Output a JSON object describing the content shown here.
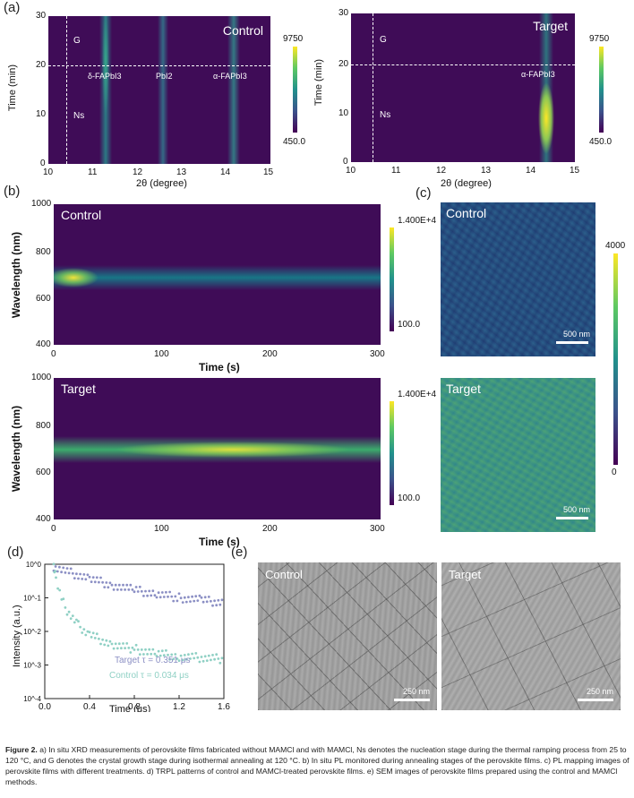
{
  "figure": {
    "caption_label": "Figure 2.",
    "caption_text": " a) In situ XRD measurements of perovskite films fabricated without MAMCl and with MAMCl, Ns denotes the nucleation stage during the thermal ramping process from 25 to 120 °C, and G denotes the crystal growth stage during isothermal annealing at 120 °C. b) In situ PL monitored during annealing stages of the perovskite films. c) PL mapping images of perovskite films with different treatments. d) TRPL patterns of control and MAMCl-treated perovskite films. e) SEM images of perovskite films prepared using the control and MAMCl methods."
  },
  "panel_a": {
    "label": "(a)",
    "left": {
      "title": "Control",
      "ylabel": "Time (min)",
      "xlabel": "2θ (degree)",
      "yticks": [
        "0",
        "10",
        "20",
        "30"
      ],
      "xticks": [
        "10",
        "11",
        "12",
        "13",
        "14",
        "15"
      ],
      "stage_top": "G",
      "stage_bottom": "Ns",
      "peaks": [
        "δ-FAPbI3",
        "PbI2",
        "α-FAPbI3"
      ],
      "cbar_max": "9750",
      "cbar_min": "450.0"
    },
    "right": {
      "title": "Target",
      "ylabel": "Time (min)",
      "xlabel": "2θ (degree)",
      "yticks": [
        "0",
        "10",
        "20",
        "30"
      ],
      "xticks": [
        "10",
        "11",
        "12",
        "13",
        "14",
        "15"
      ],
      "stage_top": "G",
      "stage_bottom": "Ns",
      "peaks": [
        "α-FAPbI3"
      ],
      "cbar_max": "9750",
      "cbar_min": "450.0"
    }
  },
  "panel_b": {
    "label": "(b)",
    "top": {
      "title": "Control",
      "ylabel": "Wavelength (nm)",
      "xlabel": "Time (s)",
      "yticks": [
        "400",
        "600",
        "800",
        "1000"
      ],
      "xticks": [
        "0",
        "100",
        "200",
        "300"
      ],
      "cbar_max": "1.400E+4",
      "cbar_min": "100.0"
    },
    "bottom": {
      "title": "Target",
      "ylabel": "Wavelength (nm)",
      "xlabel": "Time (s)",
      "yticks": [
        "400",
        "600",
        "800",
        "1000"
      ],
      "xticks": [
        "0",
        "100",
        "200",
        "300"
      ],
      "cbar_max": "1.400E+4",
      "cbar_min": "100.0"
    }
  },
  "panel_c": {
    "label": "(c)",
    "top_title": "Control",
    "bottom_title": "Target",
    "scale_bar": "500 nm",
    "cbar_max": "4000",
    "cbar_min": "0"
  },
  "panel_d": {
    "label": "(d)",
    "ylabel": "Intensity (a.u.)",
    "xlabel": "Time (μs)",
    "target_legend": "Target τ = 0.351  μs",
    "control_legend": "Control τ = 0.034  μs",
    "colors": {
      "target": "#8b8fc4",
      "control": "#8fd0c4"
    }
  },
  "panel_e": {
    "label": "(e)",
    "left_title": "Control",
    "right_title": "Target",
    "scale_bar": "250 nm"
  },
  "chart_data": {
    "type": "scatter",
    "x_range": [
      0,
      1.6
    ],
    "y_range": [
      0.0001,
      1
    ],
    "y_scale": "log",
    "xticks": [
      "0.0",
      "0.4",
      "0.8",
      "1.2",
      "1.6"
    ],
    "yticks": [
      "10^0",
      "10^-1",
      "10^-2",
      "10^-3",
      "10^-4"
    ],
    "xlabel": "Time (μs)",
    "ylabel": "Intensity (a.u.)",
    "series": [
      {
        "name": "Target τ = 0.351  μs",
        "tau": 0.351,
        "color": "#8b8fc4",
        "points": [
          [
            0.08,
            0.85
          ],
          [
            0.2,
            0.6
          ],
          [
            0.4,
            0.37
          ],
          [
            0.6,
            0.24
          ],
          [
            0.8,
            0.17
          ],
          [
            1.0,
            0.13
          ],
          [
            1.2,
            0.1
          ],
          [
            1.4,
            0.085
          ],
          [
            1.6,
            0.072
          ]
        ]
      },
      {
        "name": "Control τ = 0.034  μs",
        "tau": 0.034,
        "color": "#8fd0c4",
        "points": [
          [
            0.08,
            0.9
          ],
          [
            0.1,
            0.4
          ],
          [
            0.15,
            0.1
          ],
          [
            0.2,
            0.04
          ],
          [
            0.3,
            0.015
          ],
          [
            0.4,
            0.008
          ],
          [
            0.6,
            0.004
          ],
          [
            0.8,
            0.003
          ],
          [
            1.0,
            0.0022
          ],
          [
            1.2,
            0.0018
          ],
          [
            1.6,
            0.0015
          ]
        ]
      }
    ]
  }
}
